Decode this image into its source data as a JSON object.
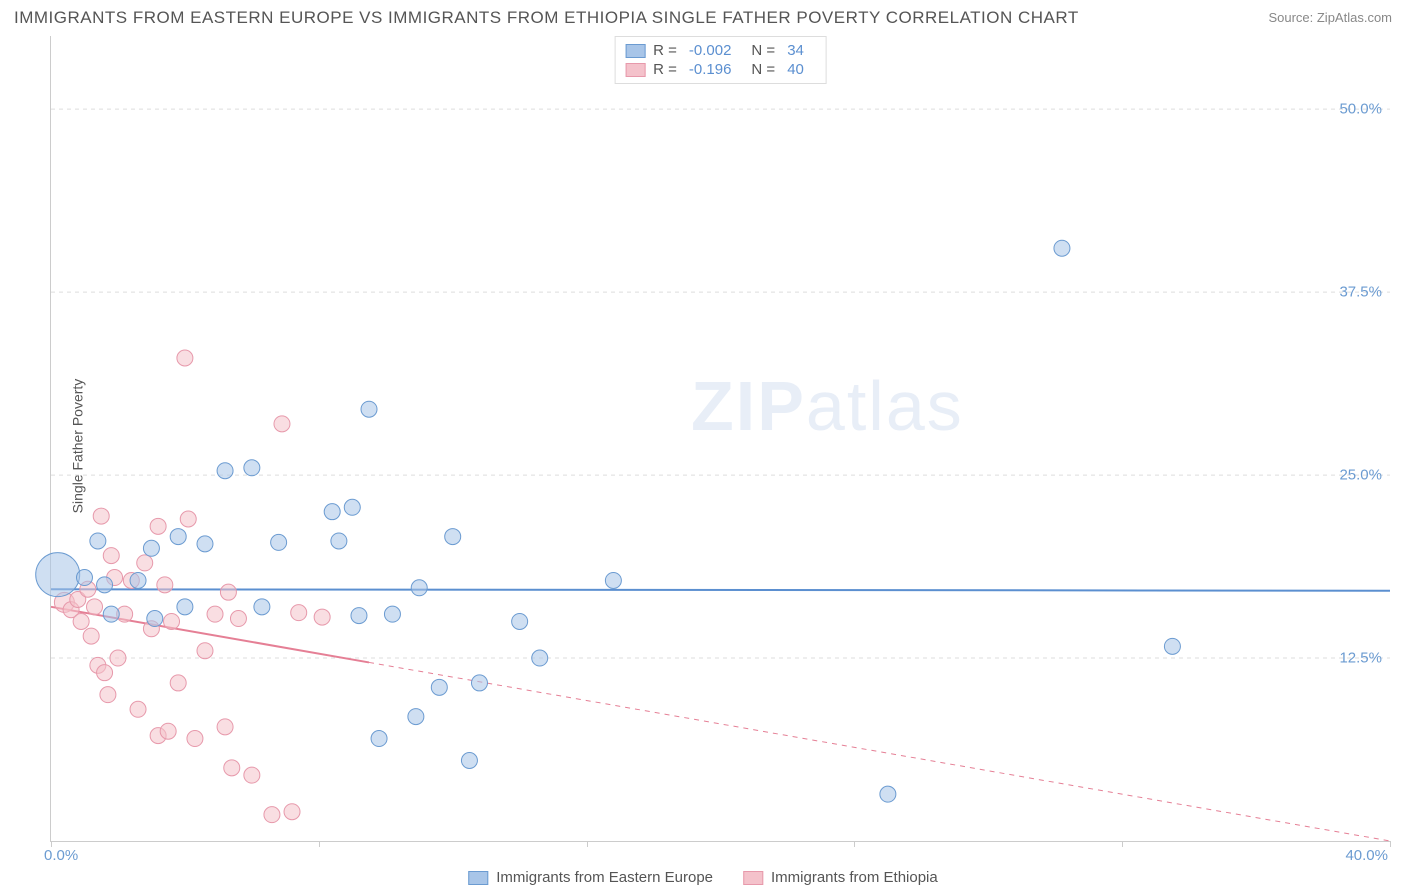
{
  "title": "IMMIGRANTS FROM EASTERN EUROPE VS IMMIGRANTS FROM ETHIOPIA SINGLE FATHER POVERTY CORRELATION CHART",
  "source": "Source: ZipAtlas.com",
  "ylabel": "Single Father Poverty",
  "watermark": "ZIPatlas",
  "chart": {
    "type": "scatter",
    "background_color": "#ffffff",
    "grid_color": "#dddddd",
    "axis_color": "#cccccc",
    "xlim": [
      0,
      40
    ],
    "ylim": [
      0,
      55
    ],
    "xtick_left": "0.0%",
    "xtick_right": "40.0%",
    "xtick_marks": [
      0,
      8,
      16,
      24,
      32,
      40
    ],
    "yticks": [
      12.5,
      25.0,
      37.5,
      50.0
    ],
    "ytick_labels": [
      "12.5%",
      "25.0%",
      "37.5%",
      "50.0%"
    ],
    "tick_color": "#6b9bd1",
    "tick_fontsize": 15,
    "label_fontsize": 14,
    "title_fontsize": 17,
    "title_color": "#555555",
    "series": [
      {
        "name": "Immigrants from Eastern Europe",
        "fill_color": "#a8c5e8",
        "stroke_color": "#6b9bd1",
        "fill_opacity": 0.55,
        "marker_radius": 8,
        "R": "-0.002",
        "N": "34",
        "regression": {
          "y_start": 17.2,
          "y_end": 17.1,
          "solid_until_x": 40,
          "line_color": "#5b8fd0",
          "line_width": 2
        },
        "points": [
          {
            "x": 0.2,
            "y": 18.2,
            "r": 22
          },
          {
            "x": 1.0,
            "y": 18.0,
            "r": 8
          },
          {
            "x": 1.4,
            "y": 20.5,
            "r": 8
          },
          {
            "x": 1.6,
            "y": 17.5,
            "r": 8
          },
          {
            "x": 1.8,
            "y": 15.5,
            "r": 8
          },
          {
            "x": 2.6,
            "y": 17.8,
            "r": 8
          },
          {
            "x": 3.0,
            "y": 20.0,
            "r": 8
          },
          {
            "x": 3.1,
            "y": 15.2,
            "r": 8
          },
          {
            "x": 3.8,
            "y": 20.8,
            "r": 8
          },
          {
            "x": 4.0,
            "y": 16.0,
            "r": 8
          },
          {
            "x": 4.6,
            "y": 20.3,
            "r": 8
          },
          {
            "x": 5.2,
            "y": 25.3,
            "r": 8
          },
          {
            "x": 6.0,
            "y": 25.5,
            "r": 8
          },
          {
            "x": 6.3,
            "y": 16.0,
            "r": 8
          },
          {
            "x": 6.8,
            "y": 20.4,
            "r": 8
          },
          {
            "x": 8.4,
            "y": 22.5,
            "r": 8
          },
          {
            "x": 8.6,
            "y": 20.5,
            "r": 8
          },
          {
            "x": 9.0,
            "y": 22.8,
            "r": 8
          },
          {
            "x": 9.2,
            "y": 15.4,
            "r": 8
          },
          {
            "x": 9.5,
            "y": 29.5,
            "r": 8
          },
          {
            "x": 9.8,
            "y": 7.0,
            "r": 8
          },
          {
            "x": 10.2,
            "y": 15.5,
            "r": 8
          },
          {
            "x": 10.9,
            "y": 8.5,
            "r": 8
          },
          {
            "x": 11.0,
            "y": 17.3,
            "r": 8
          },
          {
            "x": 11.6,
            "y": 10.5,
            "r": 8
          },
          {
            "x": 12.5,
            "y": 5.5,
            "r": 8
          },
          {
            "x": 12.8,
            "y": 10.8,
            "r": 8
          },
          {
            "x": 14.0,
            "y": 15.0,
            "r": 8
          },
          {
            "x": 14.6,
            "y": 12.5,
            "r": 8
          },
          {
            "x": 16.8,
            "y": 17.8,
            "r": 8
          },
          {
            "x": 25.0,
            "y": 3.2,
            "r": 8
          },
          {
            "x": 30.2,
            "y": 40.5,
            "r": 8
          },
          {
            "x": 33.5,
            "y": 13.3,
            "r": 8
          },
          {
            "x": 12.0,
            "y": 20.8,
            "r": 8
          }
        ]
      },
      {
        "name": "Immigrants from Ethiopia",
        "fill_color": "#f4c2cb",
        "stroke_color": "#e799ab",
        "fill_opacity": 0.55,
        "marker_radius": 8,
        "R": "-0.196",
        "N": "40",
        "regression": {
          "y_start": 16.0,
          "y_end": 0.0,
          "solid_until_x": 9.5,
          "line_color": "#e57f95",
          "line_width": 2
        },
        "points": [
          {
            "x": 0.4,
            "y": 16.3,
            "r": 10
          },
          {
            "x": 0.6,
            "y": 15.8,
            "r": 8
          },
          {
            "x": 0.8,
            "y": 16.5,
            "r": 8
          },
          {
            "x": 0.9,
            "y": 15.0,
            "r": 8
          },
          {
            "x": 1.1,
            "y": 17.2,
            "r": 8
          },
          {
            "x": 1.2,
            "y": 14.0,
            "r": 8
          },
          {
            "x": 1.3,
            "y": 16.0,
            "r": 8
          },
          {
            "x": 1.4,
            "y": 12.0,
            "r": 8
          },
          {
            "x": 1.5,
            "y": 22.2,
            "r": 8
          },
          {
            "x": 1.6,
            "y": 11.5,
            "r": 8
          },
          {
            "x": 1.7,
            "y": 10.0,
            "r": 8
          },
          {
            "x": 1.8,
            "y": 19.5,
            "r": 8
          },
          {
            "x": 1.9,
            "y": 18.0,
            "r": 8
          },
          {
            "x": 2.0,
            "y": 12.5,
            "r": 8
          },
          {
            "x": 2.2,
            "y": 15.5,
            "r": 8
          },
          {
            "x": 2.4,
            "y": 17.8,
            "r": 8
          },
          {
            "x": 2.6,
            "y": 9.0,
            "r": 8
          },
          {
            "x": 2.8,
            "y": 19.0,
            "r": 8
          },
          {
            "x": 3.0,
            "y": 14.5,
            "r": 8
          },
          {
            "x": 3.2,
            "y": 21.5,
            "r": 8
          },
          {
            "x": 3.2,
            "y": 7.2,
            "r": 8
          },
          {
            "x": 3.4,
            "y": 17.5,
            "r": 8
          },
          {
            "x": 3.5,
            "y": 7.5,
            "r": 8
          },
          {
            "x": 3.6,
            "y": 15.0,
            "r": 8
          },
          {
            "x": 3.8,
            "y": 10.8,
            "r": 8
          },
          {
            "x": 4.0,
            "y": 33.0,
            "r": 8
          },
          {
            "x": 4.1,
            "y": 22.0,
            "r": 8
          },
          {
            "x": 4.3,
            "y": 7.0,
            "r": 8
          },
          {
            "x": 4.6,
            "y": 13.0,
            "r": 8
          },
          {
            "x": 4.9,
            "y": 15.5,
            "r": 8
          },
          {
            "x": 5.2,
            "y": 7.8,
            "r": 8
          },
          {
            "x": 5.3,
            "y": 17.0,
            "r": 8
          },
          {
            "x": 5.4,
            "y": 5.0,
            "r": 8
          },
          {
            "x": 5.6,
            "y": 15.2,
            "r": 8
          },
          {
            "x": 6.0,
            "y": 4.5,
            "r": 8
          },
          {
            "x": 6.6,
            "y": 1.8,
            "r": 8
          },
          {
            "x": 6.9,
            "y": 28.5,
            "r": 8
          },
          {
            "x": 7.2,
            "y": 2.0,
            "r": 8
          },
          {
            "x": 7.4,
            "y": 15.6,
            "r": 8
          },
          {
            "x": 8.1,
            "y": 15.3,
            "r": 8
          }
        ]
      }
    ]
  },
  "legend_bottom": [
    {
      "label": "Immigrants from Eastern Europe",
      "fill": "#a8c5e8",
      "stroke": "#6b9bd1"
    },
    {
      "label": "Immigrants from Ethiopia",
      "fill": "#f4c2cb",
      "stroke": "#e799ab"
    }
  ]
}
